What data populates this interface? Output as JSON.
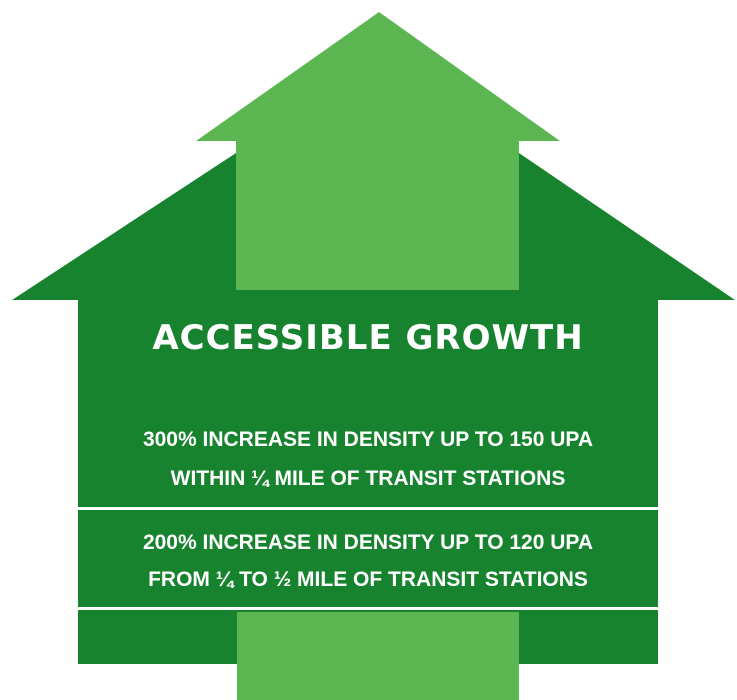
{
  "title": "ACCESSIBLE GROWTH",
  "tiers": [
    {
      "line1": "300% INCREASE IN DENSITY UP TO 150 UPA",
      "line2": "WITHIN ¼ MILE OF TRANSIT STATIONS"
    },
    {
      "line1": "200% INCREASE IN DENSITY UP TO 120 UPA",
      "line2": "FROM ¼ TO ½ MILE OF TRANSIT STATIONS"
    }
  ],
  "colors": {
    "house_dark_green": "#17832f",
    "arrow_light_green": "#5bb651",
    "divider": "#ffffff",
    "text": "#ffffff"
  }
}
